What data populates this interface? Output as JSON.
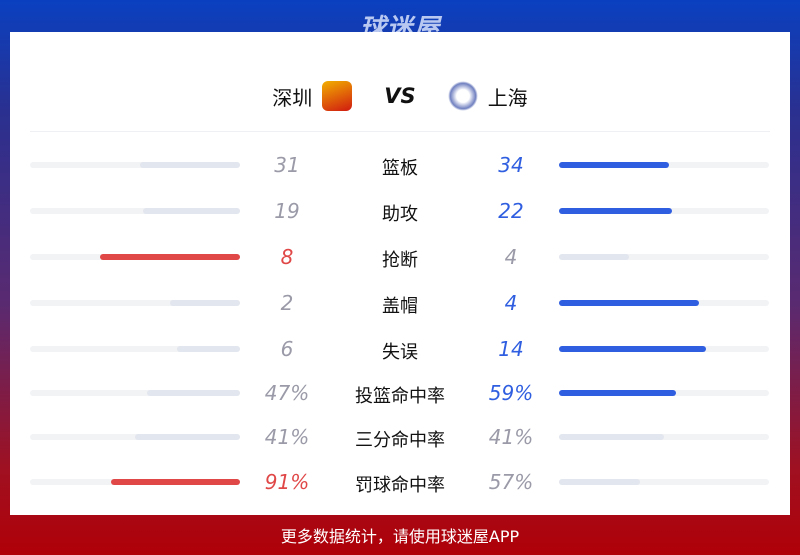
{
  "brand": "球迷屋",
  "colors": {
    "home_win": "#e04848",
    "away_win": "#2f5ee0",
    "neutral": "#e2e6ee"
  },
  "home": {
    "name": "深圳",
    "logo": "shenzhen-leopards-logo"
  },
  "vs": "VS",
  "away": {
    "name": "上海",
    "logo": "shanghai-sharks-logo"
  },
  "stats": [
    {
      "label": "篮板",
      "home": "31",
      "away": "34",
      "hv": 31,
      "av": 34
    },
    {
      "label": "助攻",
      "home": "19",
      "away": "22",
      "hv": 19,
      "av": 22
    },
    {
      "label": "抢断",
      "home": "8",
      "away": "4",
      "hv": 8,
      "av": 4
    },
    {
      "label": "盖帽",
      "home": "2",
      "away": "4",
      "hv": 2,
      "av": 4
    },
    {
      "label": "失误",
      "home": "6",
      "away": "14",
      "hv": 6,
      "av": 14
    },
    {
      "label": "投篮命中率",
      "home": "47%",
      "away": "59%",
      "hv": 47,
      "av": 59
    },
    {
      "label": "三分命中率",
      "home": "41%",
      "away": "41%",
      "hv": 41,
      "av": 41
    },
    {
      "label": "罚球命中率",
      "home": "91%",
      "away": "57%",
      "hv": 91,
      "av": 57
    }
  ],
  "footer": "更多数据统计，请使用球迷屋APP"
}
